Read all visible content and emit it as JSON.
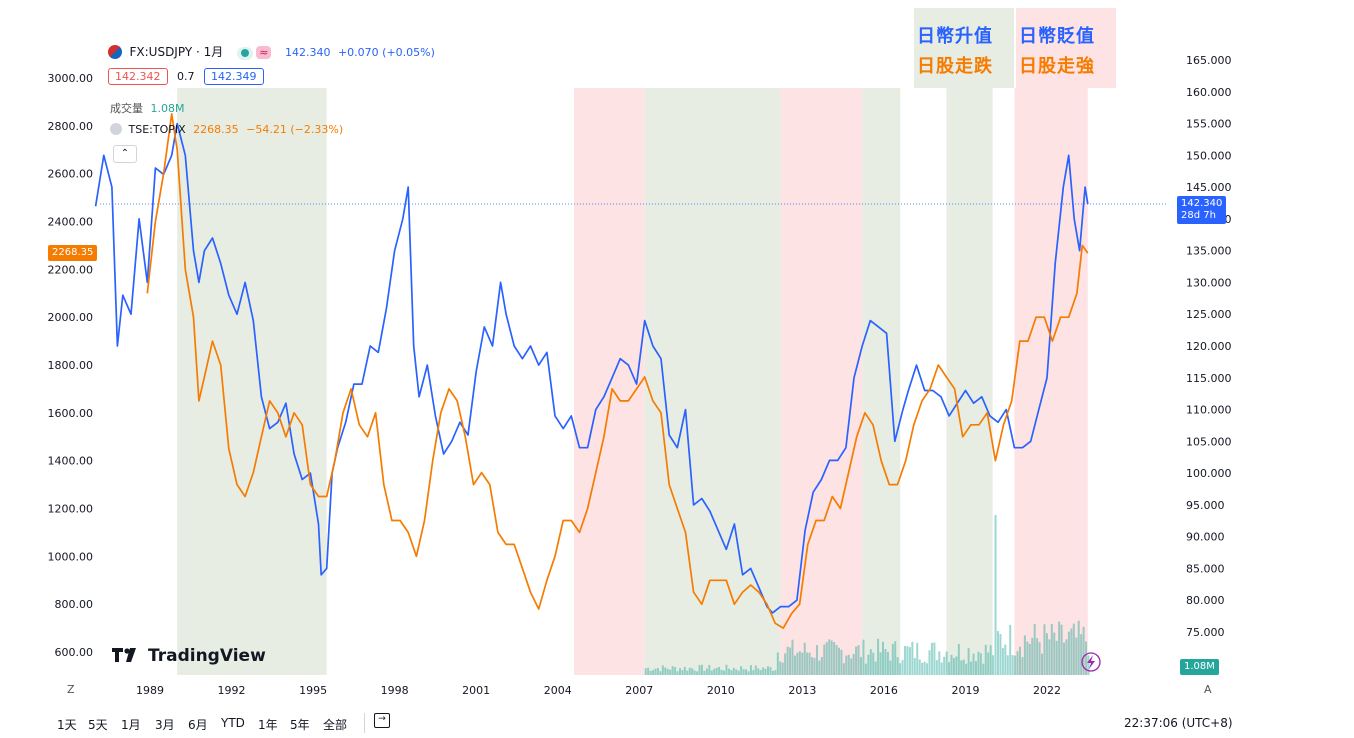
{
  "legend": {
    "symbol": "FX:USDJPY · 1月",
    "last": "142.340",
    "change": "+0.070 (+0.05%)",
    "bid": "142.342",
    "spread": "0.7",
    "ask": "142.349",
    "volume_label": "成交量",
    "volume_value": "1.08M",
    "compare_symbol": "TSE:TOPIX",
    "compare_last": "2268.35",
    "compare_change": "−54.21 (−2.33%)"
  },
  "annotations": {
    "yen_up": "日幣升值",
    "yen_down": "日幣貶值",
    "stock_down": "日股走跌",
    "stock_up": "日股走強"
  },
  "badges": {
    "topix_price": "2268.35",
    "usdjpy_price": "142.340",
    "countdown": "28d 7h",
    "volume": "1.08M"
  },
  "logo": "TradingView",
  "timeframes": [
    "1天",
    "5天",
    "1月",
    "3月",
    "6月",
    "YTD",
    "1年",
    "5年",
    "全部"
  ],
  "clock": "22:37:06 (UTC+8)",
  "axis_corner_left": "Z",
  "axis_corner_right": "A",
  "colors": {
    "usdjpy": "#2962ff",
    "topix": "#f57c00",
    "green_band": "#e8ede4",
    "red_band": "#fde3e3",
    "volume": "#26a69a",
    "ann_blue": "#2962ff",
    "ann_orange": "#f57c00"
  },
  "chart_data": {
    "type": "line",
    "x_ticks": [
      "1989",
      "1992",
      "1995",
      "1998",
      "2001",
      "2004",
      "2007",
      "2010",
      "2013",
      "2016",
      "2019",
      "2022"
    ],
    "left_axis_ticks": [
      "3000.00",
      "2800.00",
      "2600.00",
      "2400.00",
      "2200.00",
      "2000.00",
      "1800.00",
      "1600.00",
      "1400.00",
      "1200.00",
      "1000.00",
      "800.00",
      "600.00"
    ],
    "right_axis_ticks": [
      "165.000",
      "160.000",
      "155.000",
      "150.000",
      "145.000",
      "140.000",
      "135.000",
      "130.000",
      "125.000",
      "120.000",
      "115.000",
      "110.000",
      "105.000",
      "100.000",
      "95.000",
      "90.000",
      "85.000",
      "80.000",
      "75.000"
    ],
    "left_ylim": [
      600,
      3000
    ],
    "right_ylim": [
      75,
      165
    ],
    "shaded_periods": [
      {
        "start": 1990.0,
        "end": 1995.5,
        "tone": "green"
      },
      {
        "start": 2004.6,
        "end": 2007.2,
        "tone": "red"
      },
      {
        "start": 2007.2,
        "end": 2012.2,
        "tone": "green"
      },
      {
        "start": 2012.2,
        "end": 2015.2,
        "tone": "red"
      },
      {
        "start": 2015.2,
        "end": 2016.6,
        "tone": "green"
      },
      {
        "start": 2018.3,
        "end": 2020.0,
        "tone": "green"
      },
      {
        "start": 2020.8,
        "end": 2023.5,
        "tone": "red"
      }
    ],
    "series": [
      {
        "name": "FX:USDJPY",
        "axis": "right",
        "x": [
          1987.0,
          1987.3,
          1987.6,
          1987.8,
          1988.0,
          1988.3,
          1988.6,
          1988.9,
          1989.2,
          1989.5,
          1989.8,
          1990.0,
          1990.3,
          1990.6,
          1990.8,
          1991.0,
          1991.3,
          1991.6,
          1991.9,
          1992.2,
          1992.5,
          1992.8,
          1993.1,
          1993.4,
          1993.7,
          1994.0,
          1994.3,
          1994.6,
          1994.9,
          1995.2,
          1995.3,
          1995.5,
          1995.7,
          1995.9,
          1996.2,
          1996.5,
          1996.8,
          1997.1,
          1997.4,
          1997.7,
          1998.0,
          1998.3,
          1998.5,
          1998.7,
          1998.9,
          1999.2,
          1999.5,
          1999.8,
          2000.1,
          2000.4,
          2000.7,
          2001.0,
          2001.3,
          2001.6,
          2001.9,
          2002.1,
          2002.4,
          2002.7,
          2003.0,
          2003.3,
          2003.6,
          2003.9,
          2004.2,
          2004.5,
          2004.8,
          2005.1,
          2005.4,
          2005.7,
          2006.0,
          2006.3,
          2006.6,
          2006.9,
          2007.2,
          2007.5,
          2007.8,
          2008.1,
          2008.4,
          2008.7,
          2009.0,
          2009.3,
          2009.6,
          2009.9,
          2010.2,
          2010.5,
          2010.8,
          2011.1,
          2011.4,
          2011.7,
          2011.9,
          2012.2,
          2012.5,
          2012.8,
          2013.1,
          2013.4,
          2013.7,
          2014.0,
          2014.3,
          2014.6,
          2014.9,
          2015.2,
          2015.5,
          2015.8,
          2016.1,
          2016.4,
          2016.7,
          2016.9,
          2017.2,
          2017.5,
          2017.8,
          2018.1,
          2018.4,
          2018.7,
          2019.0,
          2019.3,
          2019.6,
          2019.9,
          2020.2,
          2020.5,
          2020.8,
          2021.1,
          2021.4,
          2021.7,
          2022.0,
          2022.3,
          2022.6,
          2022.8,
          2023.0,
          2023.2,
          2023.4,
          2023.5
        ],
        "values": [
          142,
          150,
          145,
          120,
          128,
          125,
          140,
          130,
          148,
          147,
          150,
          155,
          150,
          135,
          130,
          135,
          137,
          133,
          128,
          125,
          130,
          124,
          112,
          107,
          108,
          111,
          103,
          99,
          100,
          92,
          84,
          85,
          100,
          104,
          108,
          114,
          114,
          120,
          119,
          126,
          135,
          140,
          145,
          120,
          112,
          117,
          109,
          103,
          105,
          108,
          106,
          116,
          123,
          120,
          130,
          125,
          120,
          118,
          120,
          117,
          119,
          109,
          107,
          109,
          104,
          104,
          110,
          112,
          115,
          118,
          117,
          114,
          124,
          120,
          118,
          106,
          104,
          110,
          95,
          96,
          94,
          91,
          88,
          92,
          84,
          85,
          82,
          79,
          78,
          79,
          79,
          80,
          91,
          97,
          99,
          102,
          102,
          104,
          115,
          120,
          124,
          123,
          122,
          105,
          110,
          113,
          117,
          113,
          113,
          112,
          109,
          111,
          113,
          111,
          112,
          109,
          108,
          110,
          104,
          104,
          105,
          110,
          115,
          133,
          145,
          150,
          140,
          135,
          145,
          142.34
        ]
      },
      {
        "name": "TSE:TOPIX",
        "axis": "left",
        "x": [
          1987.0,
          1987.3,
          1987.6,
          1987.8,
          1988.0,
          1988.3,
          1988.6,
          1988.9,
          1989.2,
          1989.5,
          1989.8,
          1990.0,
          1990.3,
          1990.6,
          1990.8,
          1991.0,
          1991.3,
          1991.6,
          1991.9,
          1992.2,
          1992.5,
          1992.8,
          1993.1,
          1993.4,
          1993.7,
          1994.0,
          1994.3,
          1994.6,
          1994.9,
          1995.2,
          1995.5,
          1995.8,
          1996.1,
          1996.4,
          1996.7,
          1997.0,
          1997.3,
          1997.6,
          1997.9,
          1998.2,
          1998.5,
          1998.8,
          1999.1,
          1999.4,
          1999.7,
          2000.0,
          2000.3,
          2000.6,
          2000.9,
          2001.2,
          2001.5,
          2001.8,
          2002.1,
          2002.4,
          2002.7,
          2003.0,
          2003.3,
          2003.6,
          2003.9,
          2004.2,
          2004.5,
          2004.8,
          2005.1,
          2005.4,
          2005.7,
          2006.0,
          2006.3,
          2006.6,
          2006.9,
          2007.2,
          2007.5,
          2007.8,
          2008.1,
          2008.4,
          2008.7,
          2009.0,
          2009.3,
          2009.6,
          2009.9,
          2010.2,
          2010.5,
          2010.8,
          2011.1,
          2011.4,
          2011.7,
          2012.0,
          2012.3,
          2012.6,
          2012.9,
          2013.2,
          2013.5,
          2013.8,
          2014.1,
          2014.4,
          2014.7,
          2015.0,
          2015.3,
          2015.6,
          2015.9,
          2016.2,
          2016.5,
          2016.8,
          2017.1,
          2017.4,
          2017.7,
          2018.0,
          2018.3,
          2018.6,
          2018.9,
          2019.2,
          2019.5,
          2019.8,
          2020.1,
          2020.4,
          2020.7,
          2021.0,
          2021.3,
          2021.6,
          2021.9,
          2022.2,
          2022.5,
          2022.8,
          2023.1,
          2023.3,
          2023.5
        ],
        "values": [
          null,
          null,
          null,
          null,
          null,
          null,
          null,
          2100,
          2400,
          2600,
          2850,
          2700,
          2200,
          2000,
          1650,
          1750,
          1900,
          1800,
          1450,
          1300,
          1250,
          1350,
          1500,
          1650,
          1600,
          1500,
          1600,
          1550,
          1300,
          1250,
          1250,
          1400,
          1600,
          1700,
          1550,
          1500,
          1600,
          1300,
          1150,
          1150,
          1100,
          1000,
          1150,
          1400,
          1600,
          1700,
          1650,
          1500,
          1300,
          1350,
          1300,
          1100,
          1050,
          1050,
          950,
          850,
          780,
          900,
          1000,
          1150,
          1150,
          1100,
          1200,
          1350,
          1500,
          1700,
          1650,
          1650,
          1700,
          1750,
          1650,
          1600,
          1300,
          1200,
          1100,
          850,
          800,
          900,
          900,
          900,
          800,
          850,
          880,
          850,
          800,
          720,
          700,
          760,
          800,
          1050,
          1150,
          1150,
          1250,
          1200,
          1350,
          1500,
          1600,
          1550,
          1400,
          1300,
          1300,
          1400,
          1550,
          1650,
          1700,
          1800,
          1750,
          1700,
          1500,
          1550,
          1550,
          1600,
          1400,
          1550,
          1650,
          1900,
          1900,
          2000,
          2000,
          1900,
          2000,
          2000,
          2100,
          2300,
          2268
        ]
      }
    ]
  }
}
